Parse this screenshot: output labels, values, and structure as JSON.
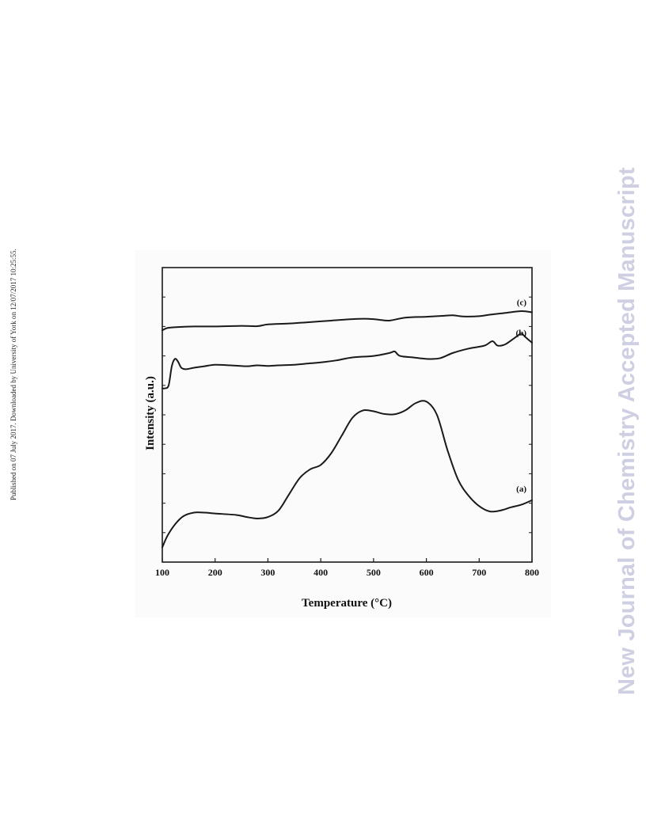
{
  "side_note": "Published on 07 July 2017. Downloaded by University of York on 12/07/2017 10:25:55.",
  "watermark": "New Journal of Chemistry Accepted Manuscript",
  "colors": {
    "line": "#1a1a1a",
    "watermark": "#cfcfe3",
    "figure_background": "#fbfbfb"
  },
  "chart_data": {
    "type": "line",
    "title": "",
    "xlabel": "Temperature (°C)",
    "ylabel": "Intensity (a.u.)",
    "xlim": [
      100,
      800
    ],
    "ylim": [
      0,
      100
    ],
    "x_ticks": [
      100,
      200,
      300,
      400,
      500,
      600,
      700,
      800
    ],
    "y_tick_labels_shown": false,
    "legend": "none",
    "grid": false,
    "series": [
      {
        "name": "(a)",
        "points": [
          [
            100,
            5
          ],
          [
            110,
            9
          ],
          [
            125,
            13
          ],
          [
            140,
            15.6
          ],
          [
            160,
            16.8
          ],
          [
            180,
            16.8
          ],
          [
            200,
            16.5
          ],
          [
            240,
            16.0
          ],
          [
            260,
            15.3
          ],
          [
            280,
            14.8
          ],
          [
            300,
            15.3
          ],
          [
            320,
            17.5
          ],
          [
            340,
            23
          ],
          [
            360,
            28.5
          ],
          [
            380,
            31.5
          ],
          [
            400,
            33
          ],
          [
            420,
            37
          ],
          [
            440,
            43
          ],
          [
            460,
            49
          ],
          [
            480,
            51.5
          ],
          [
            500,
            51.2
          ],
          [
            520,
            50.3
          ],
          [
            540,
            50.2
          ],
          [
            560,
            51.5
          ],
          [
            580,
            54
          ],
          [
            600,
            54.5
          ],
          [
            620,
            50
          ],
          [
            640,
            38
          ],
          [
            660,
            28
          ],
          [
            680,
            22.5
          ],
          [
            700,
            19
          ],
          [
            720,
            17.2
          ],
          [
            740,
            17.5
          ],
          [
            760,
            18.6
          ],
          [
            780,
            19.5
          ],
          [
            800,
            21
          ]
        ]
      },
      {
        "name": "(b)",
        "points": [
          [
            100,
            59
          ],
          [
            105,
            59
          ],
          [
            112,
            60
          ],
          [
            118,
            66.5
          ],
          [
            124,
            69
          ],
          [
            130,
            68
          ],
          [
            136,
            66
          ],
          [
            145,
            65.5
          ],
          [
            160,
            66
          ],
          [
            180,
            66.5
          ],
          [
            200,
            67
          ],
          [
            230,
            66.8
          ],
          [
            260,
            66.5
          ],
          [
            280,
            66.8
          ],
          [
            300,
            66.6
          ],
          [
            320,
            66.8
          ],
          [
            350,
            67
          ],
          [
            380,
            67.5
          ],
          [
            400,
            67.8
          ],
          [
            430,
            68.5
          ],
          [
            460,
            69.5
          ],
          [
            500,
            70
          ],
          [
            530,
            71
          ],
          [
            540,
            71.5
          ],
          [
            550,
            70
          ],
          [
            575,
            69.5
          ],
          [
            600,
            69
          ],
          [
            625,
            69.2
          ],
          [
            650,
            71
          ],
          [
            680,
            72.5
          ],
          [
            710,
            73.5
          ],
          [
            725,
            75
          ],
          [
            735,
            73.5
          ],
          [
            750,
            74
          ],
          [
            770,
            76.5
          ],
          [
            780,
            77.5
          ],
          [
            790,
            76
          ],
          [
            800,
            74.5
          ]
        ]
      },
      {
        "name": "(c)",
        "points": [
          [
            100,
            78.7
          ],
          [
            110,
            79.5
          ],
          [
            130,
            79.8
          ],
          [
            160,
            80
          ],
          [
            200,
            80
          ],
          [
            250,
            80.2
          ],
          [
            280,
            80.1
          ],
          [
            300,
            80.7
          ],
          [
            340,
            81
          ],
          [
            380,
            81.5
          ],
          [
            420,
            82
          ],
          [
            460,
            82.5
          ],
          [
            490,
            82.6
          ],
          [
            510,
            82.3
          ],
          [
            530,
            82
          ],
          [
            560,
            83
          ],
          [
            600,
            83.3
          ],
          [
            630,
            83.6
          ],
          [
            650,
            83.8
          ],
          [
            670,
            83.4
          ],
          [
            700,
            83.5
          ],
          [
            720,
            84
          ],
          [
            750,
            84.6
          ],
          [
            780,
            85.2
          ],
          [
            800,
            84.8
          ]
        ]
      }
    ]
  }
}
